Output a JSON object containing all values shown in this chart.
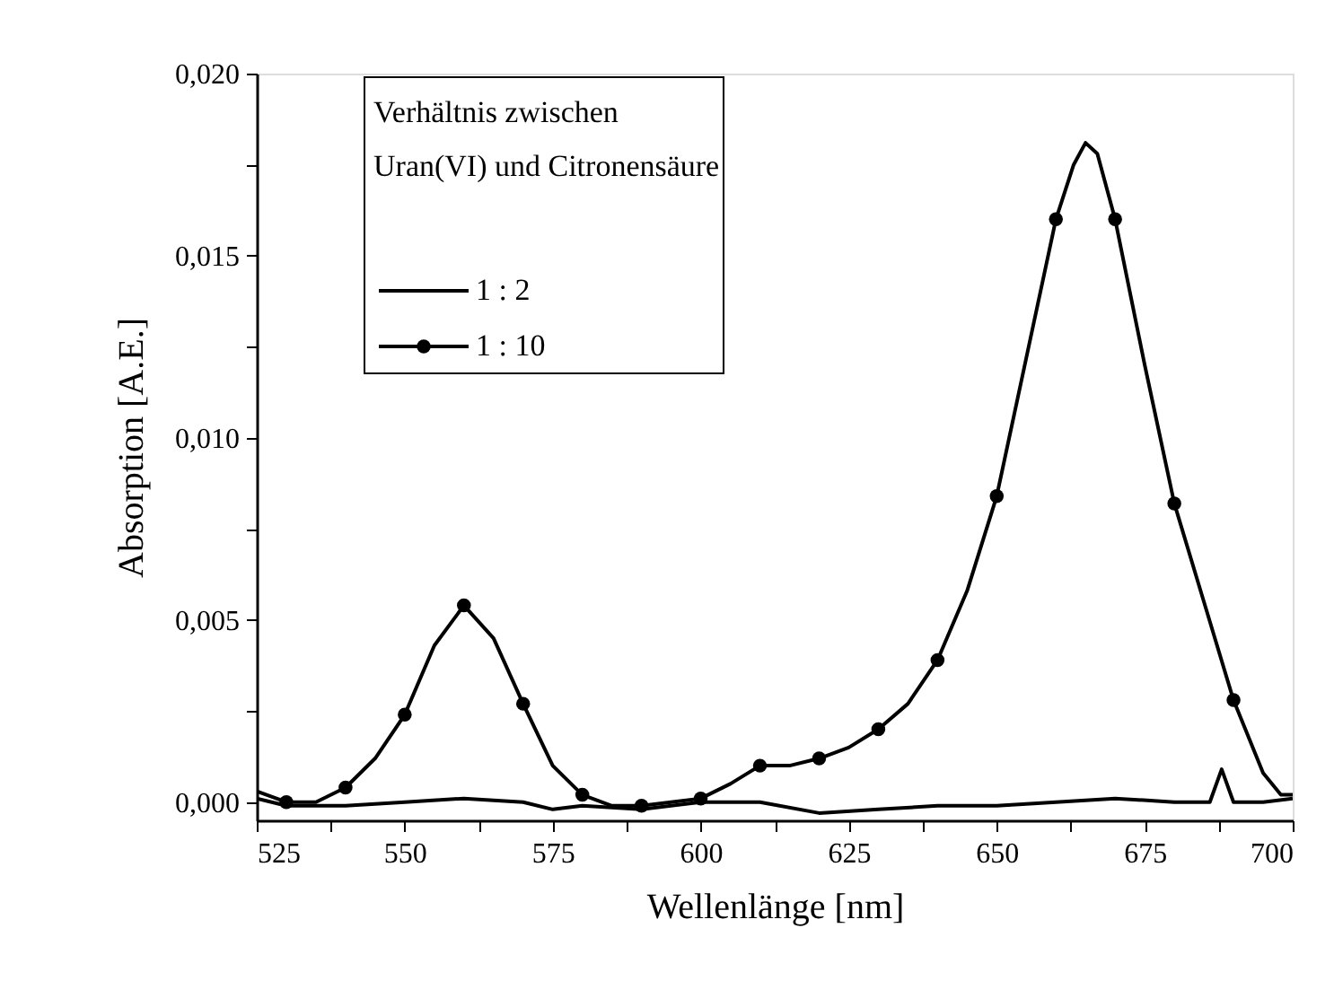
{
  "chart_data": {
    "type": "line",
    "xlabel": "Wellenlänge [nm]",
    "ylabel": "Absorption [A.E.]",
    "legend_title": "Verhältnis zwischen\nUran(VI) und Citronensäure",
    "legend": "top left",
    "grid": false,
    "xlim": [
      525,
      700
    ],
    "ylim": [
      -0.0005,
      0.02
    ],
    "xticks": [
      525,
      {
        "value": 537.5,
        "label": null
      },
      550,
      {
        "value": 562.5,
        "label": null
      },
      575,
      {
        "value": 587.5,
        "label": null
      },
      600,
      {
        "value": 612.5,
        "label": null
      },
      625,
      {
        "value": 637.5,
        "label": null
      },
      650,
      {
        "value": 662.5,
        "label": null
      },
      675,
      {
        "value": 687.5,
        "label": null
      },
      700
    ],
    "yticks": [
      {
        "value": 0,
        "label": "0,000"
      },
      {
        "value": 0.0025,
        "label": null
      },
      {
        "value": 0.005,
        "label": "0,005"
      },
      {
        "value": 0.0075,
        "label": null
      },
      {
        "value": 0.01,
        "label": "0,010"
      },
      {
        "value": 0.0125,
        "label": null
      },
      {
        "value": 0.015,
        "label": "0,015"
      },
      {
        "value": 0.0175,
        "label": null
      },
      {
        "value": 0.02,
        "label": "0,020"
      }
    ],
    "series": [
      {
        "name": "1 : 2",
        "color": "#000000",
        "marker": "none",
        "x": [
          525,
          530,
          540,
          550,
          560,
          570,
          575,
          580,
          590,
          600,
          610,
          620,
          630,
          640,
          650,
          660,
          670,
          680,
          686,
          688,
          690,
          695,
          700
        ],
        "values": [
          0.0001,
          -0.0001,
          -0.0001,
          0.0,
          0.0001,
          0.0,
          -0.0002,
          -0.0001,
          -0.0002,
          0.0,
          0.0,
          -0.0003,
          -0.0002,
          -0.0001,
          -0.0001,
          0.0,
          0.0001,
          0.0,
          0.0,
          0.0009,
          0.0,
          0.0,
          0.0001
        ]
      },
      {
        "name": "1 : 10",
        "color": "#000000",
        "marker": "none",
        "x": [
          525,
          530,
          535,
          540,
          545,
          550,
          555,
          560,
          565,
          570,
          575,
          580,
          585,
          590,
          595,
          600,
          605,
          610,
          615,
          620,
          625,
          630,
          635,
          640,
          645,
          650,
          655,
          660,
          663,
          665,
          667,
          670,
          675,
          680,
          685,
          690,
          695,
          698,
          700
        ],
        "values": [
          0.0003,
          0.0,
          0.0,
          0.0004,
          0.0012,
          0.0024,
          0.0043,
          0.0054,
          0.0045,
          0.0027,
          0.001,
          0.0002,
          -0.0001,
          -0.0001,
          0.0,
          0.0001,
          0.0005,
          0.001,
          0.001,
          0.0012,
          0.0015,
          0.002,
          0.0027,
          0.0039,
          0.0058,
          0.0084,
          0.0122,
          0.016,
          0.0175,
          0.0181,
          0.0178,
          0.016,
          0.012,
          0.0082,
          0.0055,
          0.0028,
          0.0008,
          0.0002,
          0.0002
        ]
      },
      {
        "type": "scatter",
        "color": "#000000",
        "marker": "circle",
        "x": [
          530,
          540,
          550,
          560,
          570,
          580,
          590,
          600,
          610,
          620,
          630,
          640,
          650,
          660,
          670,
          680,
          690
        ],
        "values": [
          0.0,
          0.0004,
          0.0024,
          0.0054,
          0.0027,
          0.0002,
          -0.0001,
          0.0001,
          0.001,
          0.0012,
          0.002,
          0.0039,
          0.0084,
          0.016,
          0.016,
          0.0082,
          0.0028
        ]
      }
    ]
  }
}
